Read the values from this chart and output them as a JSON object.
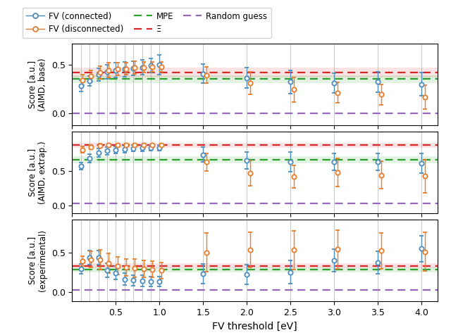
{
  "x_dense": [
    0.1,
    0.2,
    0.3,
    0.4,
    0.5,
    0.6,
    0.7,
    0.8,
    0.9,
    1.0
  ],
  "x_sparse": [
    1.5,
    2.0,
    2.5,
    3.0,
    3.5,
    4.0
  ],
  "panel0": {
    "ylabel": "Score [a.u.]\n(AIMD, base)",
    "ylim": [
      -0.12,
      0.72
    ],
    "yticks": [
      0.0,
      0.5
    ],
    "mpe": 0.355,
    "mpe_std": 0.038,
    "xi": 0.425,
    "xi_std": 0.05,
    "random": 0.0,
    "connected_dense_y": [
      0.285,
      0.335,
      0.4,
      0.43,
      0.445,
      0.455,
      0.465,
      0.475,
      0.495,
      0.5
    ],
    "connected_dense_err": [
      0.06,
      0.05,
      0.065,
      0.07,
      0.075,
      0.075,
      0.075,
      0.075,
      0.075,
      0.1
    ],
    "disconnected_dense_y": [
      0.345,
      0.385,
      0.42,
      0.445,
      0.455,
      0.46,
      0.47,
      0.475,
      0.48,
      0.48
    ],
    "disconnected_dense_err": [
      0.055,
      0.06,
      0.065,
      0.075,
      0.065,
      0.06,
      0.065,
      0.055,
      0.05,
      0.05
    ],
    "connected_sparse_y": [
      0.41,
      0.365,
      0.325,
      0.315,
      0.325,
      0.3
    ],
    "connected_sparse_err": [
      0.1,
      0.105,
      0.12,
      0.1,
      0.105,
      0.12
    ],
    "disconnected_sparse_y": [
      0.395,
      0.315,
      0.245,
      0.215,
      0.195,
      0.17
    ],
    "disconnected_sparse_err": [
      0.085,
      0.115,
      0.125,
      0.105,
      0.105,
      0.125
    ]
  },
  "panel1": {
    "ylabel": "Score [a.u.]\n(AIMD, extrap.)",
    "ylim": [
      -0.12,
      1.08
    ],
    "yticks": [
      0.0,
      0.5
    ],
    "mpe": 0.665,
    "mpe_std": 0.05,
    "xi": 0.88,
    "xi_std": 0.04,
    "random": 0.03,
    "connected_dense_y": [
      0.575,
      0.69,
      0.77,
      0.8,
      0.815,
      0.825,
      0.835,
      0.84,
      0.845,
      0.845
    ],
    "connected_dense_err": [
      0.055,
      0.065,
      0.065,
      0.055,
      0.05,
      0.05,
      0.045,
      0.045,
      0.04,
      0.04
    ],
    "disconnected_dense_y": [
      0.815,
      0.855,
      0.875,
      0.88,
      0.885,
      0.885,
      0.885,
      0.885,
      0.885,
      0.885
    ],
    "disconnected_dense_err": [
      0.045,
      0.035,
      0.035,
      0.03,
      0.025,
      0.025,
      0.025,
      0.025,
      0.025,
      0.025
    ],
    "connected_sparse_y": [
      0.745,
      0.655,
      0.635,
      0.635,
      0.635,
      0.62
    ],
    "connected_sparse_err": [
      0.105,
      0.125,
      0.145,
      0.125,
      0.125,
      0.145
    ],
    "disconnected_sparse_y": [
      0.635,
      0.475,
      0.415,
      0.48,
      0.445,
      0.425
    ],
    "disconnected_sparse_err": [
      0.13,
      0.185,
      0.165,
      0.205,
      0.205,
      0.245
    ]
  },
  "panel2": {
    "ylabel": "Score [a.u.]\n(experimental)",
    "ylim": [
      -0.12,
      0.92
    ],
    "yticks": [
      0.0,
      0.5
    ],
    "mpe": 0.285,
    "mpe_std": 0.03,
    "xi": 0.335,
    "xi_std": 0.03,
    "random": 0.03,
    "connected_dense_y": [
      0.295,
      0.44,
      0.44,
      0.275,
      0.245,
      0.165,
      0.15,
      0.145,
      0.135,
      0.135
    ],
    "connected_dense_err": [
      0.065,
      0.09,
      0.09,
      0.09,
      0.085,
      0.075,
      0.065,
      0.07,
      0.065,
      0.065
    ],
    "disconnected_dense_y": [
      0.395,
      0.415,
      0.41,
      0.365,
      0.335,
      0.315,
      0.305,
      0.295,
      0.29,
      0.275
    ],
    "disconnected_dense_err": [
      0.065,
      0.105,
      0.125,
      0.125,
      0.115,
      0.105,
      0.115,
      0.105,
      0.105,
      0.105
    ],
    "connected_sparse_y": [
      0.23,
      0.225,
      0.255,
      0.405,
      0.375,
      0.555
    ],
    "connected_sparse_err": [
      0.125,
      0.125,
      0.145,
      0.145,
      0.145,
      0.165
    ],
    "disconnected_sparse_y": [
      0.505,
      0.535,
      0.535,
      0.545,
      0.525,
      0.515
    ],
    "disconnected_sparse_err": [
      0.245,
      0.225,
      0.245,
      0.245,
      0.225,
      0.245
    ]
  },
  "colors": {
    "connected": "#4C8DBF",
    "disconnected": "#E87C2A",
    "mpe": "#2CA02C",
    "xi": "#D62728",
    "random": "#9467BD"
  },
  "xlabel": "FV threshold [eV]",
  "figsize": [
    6.4,
    4.76
  ],
  "dpi": 100
}
